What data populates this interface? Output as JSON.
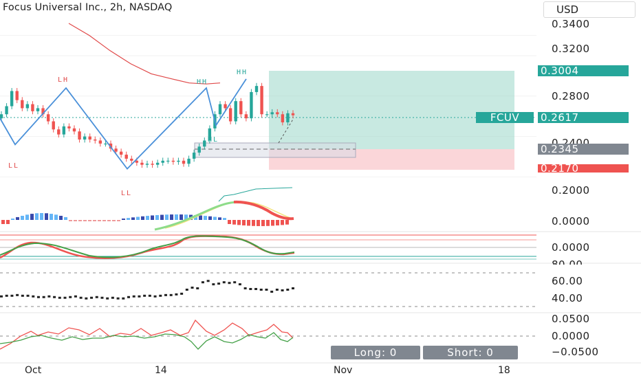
{
  "header": {
    "title": "Focus Universal Inc., 2h, NASDAQ",
    "currency": "USD"
  },
  "price_tags": {
    "target": "0.3004",
    "ticker": "FCUV",
    "last": "0.2617",
    "entry": "0.2345",
    "stop": "0.2170"
  },
  "strategy": {
    "long_label": "Long: 0",
    "short_label": "Short: 0"
  },
  "colors": {
    "up": "#26a69a",
    "down": "#ef5350",
    "zigzag": "#4a90d9",
    "ma": "#e04848",
    "target_zone": "#9ad7c8",
    "stop_zone": "#f9c8cc",
    "entry_tag": "#808790"
  },
  "chart_data": [
    {
      "type": "candlestick",
      "title": "Focus Universal Inc., 2h, NASDAQ",
      "x_ticks": [
        "Oct",
        "14",
        "Nov",
        "18"
      ],
      "y_ticks": [
        "0.3400",
        "0.3200",
        "0.2800",
        "0.2400",
        "0.2000"
      ],
      "ylim": [
        0.188,
        0.352
      ],
      "closes": [
        0.262,
        0.27,
        0.285,
        0.276,
        0.268,
        0.272,
        0.265,
        0.268,
        0.262,
        0.255,
        0.247,
        0.242,
        0.25,
        0.248,
        0.245,
        0.237,
        0.24,
        0.237,
        0.236,
        0.233,
        0.233,
        0.228,
        0.225,
        0.222,
        0.218,
        0.216,
        0.214,
        0.212,
        0.213,
        0.212,
        0.214,
        0.216,
        0.216,
        0.215,
        0.216,
        0.213,
        0.218,
        0.224,
        0.23,
        0.236,
        0.248,
        0.262,
        0.272,
        0.268,
        0.255,
        0.275,
        0.262,
        0.258,
        0.284,
        0.29,
        0.262,
        0.262,
        0.264,
        0.262,
        0.254,
        0.263,
        0.261
      ],
      "pivots": [
        {
          "label": "LH",
          "value": 0.288
        },
        {
          "label": "LL",
          "value": 0.232
        },
        {
          "label": "LL",
          "value": 0.208
        },
        {
          "label": "HH",
          "value": 0.298
        },
        {
          "label": "HL",
          "value": 0.251
        },
        {
          "label": "HH",
          "value": 0.297
        }
      ],
      "position": {
        "target": 0.3004,
        "entry": 0.2345,
        "stop": 0.217,
        "last": 0.2617
      }
    },
    {
      "type": "histogram",
      "y_ticks": [
        "0.0000"
      ]
    },
    {
      "type": "line",
      "y_ticks": [
        "0.0000"
      ]
    },
    {
      "type": "scatter",
      "y_ticks": [
        "80.00",
        "60.00",
        "40.00"
      ],
      "ylim": [
        25,
        82
      ],
      "values": [
        45,
        46,
        46,
        47,
        46,
        46,
        45,
        44,
        44,
        45,
        44,
        43,
        43,
        44,
        45,
        43,
        42,
        43,
        44,
        43,
        42,
        43,
        42,
        42,
        44,
        45,
        45,
        46,
        46,
        45,
        46,
        47,
        47,
        48,
        49,
        55,
        58,
        57,
        66,
        68,
        63,
        64,
        66,
        65,
        66,
        63,
        57,
        56,
        56,
        55,
        55,
        52,
        55,
        54,
        55,
        57
      ]
    },
    {
      "type": "line",
      "y_ticks": [
        "0.0500",
        "0.0000",
        "−0.0500"
      ],
      "ylim": [
        -0.065,
        0.065
      ]
    }
  ]
}
